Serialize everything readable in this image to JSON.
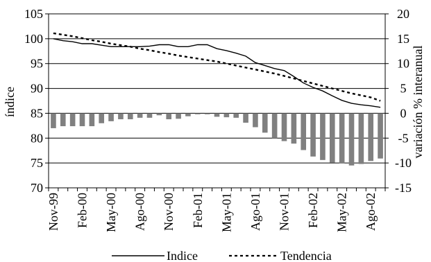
{
  "chart_data": {
    "type": "bar+line",
    "title": "",
    "xlabel": "",
    "ylabel": "índice",
    "y2label": "variación % interanual",
    "ylim": [
      70,
      105
    ],
    "y2lim": [
      -15,
      20
    ],
    "yticks": [
      70,
      75,
      80,
      85,
      90,
      95,
      100,
      105
    ],
    "y2ticks": [
      -15,
      -10,
      -5,
      0,
      5,
      10,
      15,
      20
    ],
    "grid": "horizontal",
    "legend_position": "bottom",
    "x": [
      "Nov-99",
      "Dic-99",
      "Ene-00",
      "Feb-00",
      "Mar-00",
      "Abr-00",
      "May-00",
      "Jun-00",
      "Jul-00",
      "Ago-00",
      "Sep-00",
      "Oct-00",
      "Nov-00",
      "Dic-00",
      "Ene-01",
      "Feb-01",
      "Mar-01",
      "Abr-01",
      "May-01",
      "Jun-01",
      "Jul-01",
      "Ago-01",
      "Sep-01",
      "Oct-01",
      "Nov-01",
      "Dic-01",
      "Ene-02",
      "Feb-02",
      "Mar-02",
      "Abr-02",
      "May-02",
      "Jun-02",
      "Jul-02",
      "Ago-02",
      "Sep-02"
    ],
    "xticklabels": [
      "Nov-99",
      "Feb-00",
      "May-00",
      "Ago-00",
      "Nov-00",
      "Feb-01",
      "May-01",
      "Ago-01",
      "Nov-01",
      "Feb-02",
      "May-02",
      "Ago-02"
    ],
    "series": [
      {
        "name": "Indice",
        "type": "line",
        "axis": "left",
        "style": "solid",
        "color": "#000000",
        "values": [
          100.0,
          99.6,
          99.4,
          99.0,
          99.0,
          98.7,
          98.4,
          98.4,
          98.4,
          98.4,
          98.5,
          98.8,
          98.8,
          98.4,
          98.4,
          98.8,
          98.8,
          98.0,
          97.6,
          97.1,
          96.5,
          95.2,
          94.6,
          94.0,
          93.6,
          92.4,
          91.1,
          90.2,
          89.5,
          88.5,
          87.6,
          87.0,
          86.7,
          86.5,
          86.2
        ]
      },
      {
        "name": "Tendencia",
        "type": "line",
        "axis": "left",
        "style": "dashed",
        "color": "#000000",
        "values": [
          101.1,
          100.8,
          100.5,
          100.1,
          99.7,
          99.4,
          99.0,
          98.7,
          98.4,
          98.0,
          97.7,
          97.3,
          97.0,
          96.6,
          96.3,
          96.0,
          95.7,
          95.4,
          95.0,
          94.6,
          94.2,
          93.8,
          93.4,
          93.0,
          92.5,
          92.0,
          91.5,
          91.0,
          90.5,
          90.0,
          89.5,
          89.0,
          88.6,
          88.2,
          87.5
        ]
      },
      {
        "name": "variación % interanual",
        "type": "bar",
        "axis": "right",
        "color": "#808080",
        "values": [
          -3.0,
          -2.6,
          -2.6,
          -2.6,
          -2.6,
          -2.0,
          -1.6,
          -1.2,
          -1.2,
          -0.9,
          -0.9,
          -0.4,
          -1.2,
          -1.1,
          -0.6,
          -0.2,
          -0.2,
          -0.7,
          -0.8,
          -0.9,
          -1.9,
          -2.8,
          -3.9,
          -5.0,
          -5.6,
          -6.1,
          -7.4,
          -8.7,
          -9.4,
          -9.9,
          -10.1,
          -10.5,
          -10.2,
          -9.6,
          -9.1
        ]
      }
    ]
  }
}
